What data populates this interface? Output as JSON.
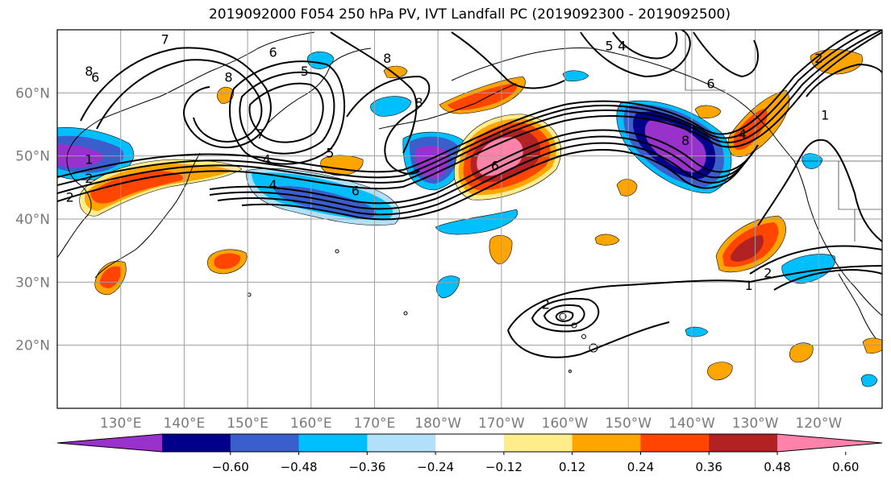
{
  "title": "2019092000 F054 250 hPa PV, IVT Landfall PC (2019092300 - 2019092500)",
  "lon_ticks": [
    {
      "lon": 130,
      "label": "130°E"
    },
    {
      "lon": 140,
      "label": "140°E"
    },
    {
      "lon": 150,
      "label": "150°E"
    },
    {
      "lon": 160,
      "label": "160°E"
    },
    {
      "lon": 170,
      "label": "170°E"
    },
    {
      "lon": 180,
      "label": "180°W"
    },
    {
      "lon": 190,
      "label": "170°W"
    },
    {
      "lon": 200,
      "label": "160°W"
    },
    {
      "lon": 210,
      "label": "150°W"
    },
    {
      "lon": 220,
      "label": "140°W"
    },
    {
      "lon": 230,
      "label": "130°W"
    },
    {
      "lon": 240,
      "label": "120°W"
    }
  ],
  "lat_ticks": [
    {
      "lat": 20,
      "label": "20°N"
    },
    {
      "lat": 30,
      "label": "30°N"
    },
    {
      "lat": 40,
      "label": "40°N"
    },
    {
      "lat": 50,
      "label": "50°N"
    },
    {
      "lat": 60,
      "label": "60°N"
    }
  ],
  "colorbar": {
    "colors": [
      "#9932cc",
      "#00008b",
      "#3a5fcd",
      "#00bfff",
      "#b2e0fb",
      "#ffffff",
      "#ffec8b",
      "#ffa500",
      "#ff4500",
      "#b22222",
      "#ff82ab"
    ],
    "tick_labels": [
      "−0.60",
      "−0.48",
      "−0.36",
      "−0.24",
      "−0.12",
      "0.12",
      "0.24",
      "0.36",
      "0.48",
      "0.60"
    ]
  },
  "contour_labels": [
    {
      "text": "1",
      "lon": 125,
      "lat": 49
    },
    {
      "text": "2",
      "lon": 125,
      "lat": 46
    },
    {
      "text": "2",
      "lon": 122,
      "lat": 43
    },
    {
      "text": "7",
      "lon": 137,
      "lat": 68
    },
    {
      "text": "8",
      "lon": 125,
      "lat": 63
    },
    {
      "text": "6",
      "lon": 126,
      "lat": 62
    },
    {
      "text": "8",
      "lon": 147,
      "lat": 62
    },
    {
      "text": "6",
      "lon": 154,
      "lat": 66
    },
    {
      "text": "7",
      "lon": 152,
      "lat": 53
    },
    {
      "text": "5",
      "lon": 159,
      "lat": 63
    },
    {
      "text": "4",
      "lon": 153,
      "lat": 49
    },
    {
      "text": "4",
      "lon": 154,
      "lat": 45
    },
    {
      "text": "5",
      "lon": 163,
      "lat": 50
    },
    {
      "text": "6",
      "lon": 167,
      "lat": 44
    },
    {
      "text": "8",
      "lon": 172,
      "lat": 65
    },
    {
      "text": "8",
      "lon": 177,
      "lat": 58
    },
    {
      "text": "6",
      "lon": 189,
      "lat": 48
    },
    {
      "text": "5",
      "lon": 207,
      "lat": 67
    },
    {
      "text": "4",
      "lon": 209,
      "lat": 67
    },
    {
      "text": "6",
      "lon": 223,
      "lat": 61
    },
    {
      "text": "8",
      "lon": 219,
      "lat": 52
    },
    {
      "text": "4",
      "lon": 228,
      "lat": 53
    },
    {
      "text": "1",
      "lon": 241,
      "lat": 56
    },
    {
      "text": "2",
      "lon": 240,
      "lat": 65
    },
    {
      "text": "2",
      "lon": 197,
      "lat": 26
    },
    {
      "text": "1",
      "lon": 229,
      "lat": 29
    },
    {
      "text": "2",
      "lon": 232,
      "lat": 31
    }
  ]
}
